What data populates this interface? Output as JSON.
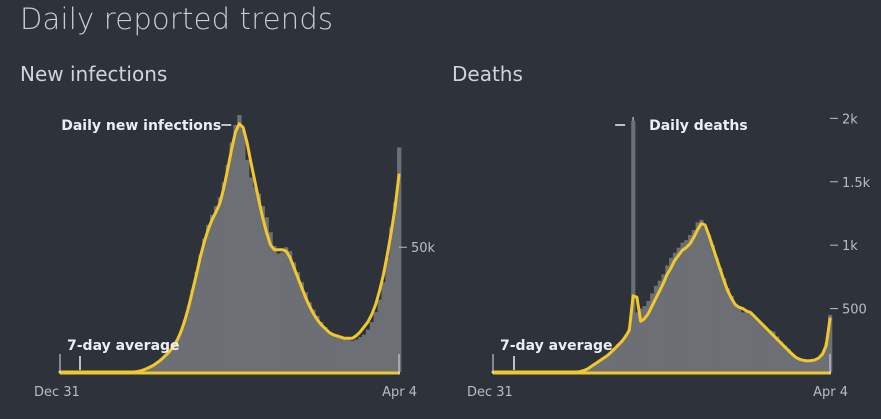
{
  "title": "Daily reported trends",
  "colors": {
    "background": "#2e323b",
    "bars": "#6c6f74",
    "average": "#f0c72f",
    "text": "#d7d9de"
  },
  "chart_data": [
    {
      "type": "area",
      "title": "New infections",
      "x_start": "Dec 31",
      "x_end": "Apr 4",
      "x_ticks": [
        "Dec 31",
        "Apr 4"
      ],
      "y_ticks": [
        {
          "value": 50000,
          "label": "50k"
        }
      ],
      "ylim": [
        0,
        105000
      ],
      "grid": false,
      "annotations": {
        "peak": "Daily new infections",
        "average": "7-day average"
      },
      "series": [
        {
          "name": "Daily new infections",
          "values": [
            0,
            0,
            0,
            0,
            0,
            0,
            0,
            0,
            0,
            0,
            0,
            0,
            0,
            0,
            0,
            0,
            0,
            0,
            0,
            0,
            300,
            800,
            1500,
            2200,
            3000,
            4200,
            5500,
            7000,
            8500,
            10500,
            13000,
            16500,
            21000,
            26500,
            33000,
            40000,
            47000,
            53500,
            59000,
            63000,
            66500,
            70000,
            76000,
            83000,
            92000,
            99000,
            103000,
            97000,
            85000,
            78000,
            74000,
            71500,
            66500,
            62000,
            56000,
            50500,
            47500,
            48000,
            50000,
            48500,
            44000,
            40000,
            36000,
            32000,
            28000,
            25000,
            22500,
            20000,
            18000,
            16000,
            15500,
            15000,
            14500,
            13500,
            13000,
            12500,
            13000,
            14000,
            15000,
            17000,
            20000,
            24000,
            29000,
            36000,
            46000,
            58000,
            68000,
            90000
          ]
        },
        {
          "name": "7-day average",
          "values": [
            0,
            0,
            0,
            0,
            0,
            0,
            0,
            0,
            0,
            0,
            0,
            0,
            0,
            0,
            0,
            0,
            0,
            0,
            0,
            0,
            200,
            600,
            1200,
            1900,
            2700,
            3800,
            5000,
            6500,
            8000,
            10000,
            12500,
            16000,
            20500,
            26000,
            32500,
            39000,
            46000,
            52000,
            57000,
            61000,
            64000,
            67500,
            73500,
            81000,
            89000,
            96000,
            99500,
            98000,
            92000,
            84000,
            76500,
            69000,
            62000,
            56000,
            51000,
            49000,
            49000,
            49000,
            48500,
            46000,
            42000,
            38000,
            34000,
            30000,
            26500,
            23500,
            21000,
            19000,
            17500,
            16000,
            15000,
            14500,
            14000,
            13500,
            13500,
            13500,
            14500,
            16000,
            18000,
            20000,
            23000,
            27000,
            32500,
            39000,
            47000,
            56000,
            66000,
            79000
          ]
        }
      ]
    },
    {
      "type": "area",
      "title": "Deaths",
      "x_start": "Dec 31",
      "x_end": "Apr 4",
      "x_ticks": [
        "Dec 31",
        "Apr 4"
      ],
      "y_ticks": [
        {
          "value": 500,
          "label": "500"
        },
        {
          "value": 1000,
          "label": "1k"
        },
        {
          "value": 1500,
          "label": "1.5k"
        },
        {
          "value": 2000,
          "label": "2k"
        }
      ],
      "ylim": [
        0,
        2050
      ],
      "grid": false,
      "annotations": {
        "peak": "Daily deaths",
        "average": "7-day average"
      },
      "series": [
        {
          "name": "Daily deaths",
          "values": [
            0,
            0,
            0,
            0,
            0,
            0,
            0,
            0,
            0,
            0,
            0,
            0,
            0,
            0,
            0,
            0,
            0,
            0,
            0,
            0,
            0,
            0,
            0,
            5,
            15,
            30,
            50,
            70,
            90,
            110,
            130,
            160,
            190,
            220,
            250,
            290,
            340,
            1980,
            470,
            500,
            520,
            560,
            620,
            680,
            720,
            770,
            840,
            900,
            940,
            980,
            1020,
            1040,
            1080,
            1120,
            1180,
            1200,
            1140,
            1080,
            1000,
            900,
            820,
            740,
            660,
            600,
            540,
            500,
            470,
            480,
            470,
            430,
            400,
            370,
            350,
            330,
            320,
            280,
            240,
            210,
            180,
            150,
            120,
            100,
            90,
            80,
            85,
            95,
            110,
            150,
            230,
            450
          ]
        },
        {
          "name": "7-day average",
          "values": [
            0,
            0,
            0,
            0,
            0,
            0,
            0,
            0,
            0,
            0,
            0,
            0,
            0,
            0,
            0,
            0,
            0,
            0,
            0,
            0,
            0,
            0,
            0,
            3,
            12,
            25,
            45,
            65,
            85,
            105,
            125,
            150,
            180,
            210,
            240,
            280,
            330,
            600,
            590,
            400,
            420,
            460,
            520,
            580,
            640,
            700,
            770,
            820,
            880,
            920,
            960,
            980,
            1010,
            1060,
            1120,
            1170,
            1160,
            1080,
            990,
            900,
            810,
            720,
            640,
            580,
            530,
            510,
            500,
            480,
            470,
            440,
            410,
            380,
            350,
            320,
            290,
            260,
            230,
            200,
            170,
            140,
            115,
            100,
            92,
            88,
            90,
            95,
            110,
            140,
            210,
            420
          ]
        }
      ]
    }
  ]
}
